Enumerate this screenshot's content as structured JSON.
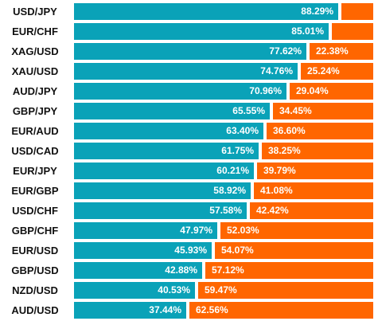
{
  "chart_data": {
    "type": "bar",
    "orientation": "horizontal",
    "stacked": true,
    "categories": [
      "USD/JPY",
      "EUR/CHF",
      "XAG/USD",
      "XAU/USD",
      "AUD/JPY",
      "GBP/JPY",
      "EUR/AUD",
      "USD/CAD",
      "EUR/JPY",
      "EUR/GBP",
      "USD/CHF",
      "GBP/CHF",
      "EUR/USD",
      "GBP/USD",
      "NZD/USD",
      "AUD/USD"
    ],
    "series": [
      {
        "values": [
          88.29,
          85.01,
          77.62,
          74.76,
          70.96,
          65.55,
          63.4,
          61.75,
          60.21,
          58.92,
          57.58,
          47.97,
          45.93,
          42.88,
          40.53,
          37.44
        ]
      },
      {
        "values": [
          11.71,
          14.99,
          22.38,
          25.24,
          29.04,
          34.45,
          36.6,
          38.25,
          39.79,
          41.08,
          42.42,
          52.03,
          54.07,
          57.12,
          59.47,
          62.56
        ]
      }
    ],
    "labels_long": [
      "88.29%",
      "85.01%",
      "77.62%",
      "74.76%",
      "70.96%",
      "65.55%",
      "63.40%",
      "61.75%",
      "60.21%",
      "58.92%",
      "57.58%",
      "47.97%",
      "45.93%",
      "42.88%",
      "40.53%",
      "37.44%"
    ],
    "labels_short": [
      "",
      "",
      "22.38%",
      "25.24%",
      "29.04%",
      "34.45%",
      "36.60%",
      "38.25%",
      "39.79%",
      "41.08%",
      "42.42%",
      "52.03%",
      "54.07%",
      "57.12%",
      "59.47%",
      "62.56%"
    ],
    "xlim": [
      0,
      100
    ],
    "grid": false,
    "colors": {
      "long": "#0aa2b8",
      "short": "#ff6600",
      "track": "#c8c8c8"
    }
  }
}
